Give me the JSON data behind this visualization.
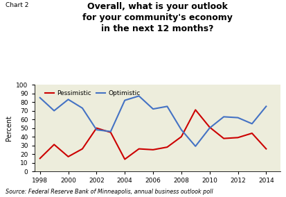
{
  "years": [
    1998,
    1999,
    2000,
    2001,
    2002,
    2003,
    2004,
    2005,
    2006,
    2007,
    2008,
    2009,
    2010,
    2011,
    2012,
    2013,
    2014
  ],
  "pessimistic": [
    15,
    31,
    17,
    26,
    50,
    45,
    14,
    26,
    25,
    28,
    40,
    71,
    51,
    38,
    39,
    44,
    26
  ],
  "optimistic": [
    85,
    70,
    83,
    73,
    48,
    46,
    82,
    87,
    72,
    75,
    48,
    29,
    50,
    63,
    62,
    55,
    75
  ],
  "title": "Overall, what is your outlook\nfor your community's economy\nin the next 12 months?",
  "chart_label": "Chart 2",
  "ylabel": "Percent",
  "source": "Source: Federal Reserve Bank of Minneapolis, annual business outlook poll",
  "pessimistic_label": "Pessimistic",
  "optimistic_label": "Optimistic",
  "pessimistic_color": "#cc0000",
  "optimistic_color": "#4472c4",
  "bg_color": "#ededdc",
  "ylim": [
    0,
    100
  ],
  "xlim": [
    1997.6,
    2015.0
  ],
  "xticks": [
    1998,
    2000,
    2002,
    2004,
    2006,
    2008,
    2010,
    2012,
    2014
  ],
  "yticks": [
    0,
    10,
    20,
    30,
    40,
    50,
    60,
    70,
    80,
    90,
    100
  ]
}
